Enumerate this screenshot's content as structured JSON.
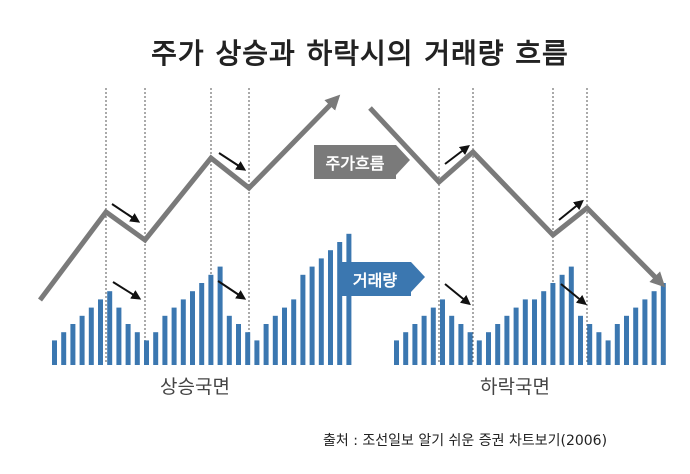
{
  "title": "주가 상승과 하락시의 거래량 흐름",
  "labels": {
    "price_flow": "주가흐름",
    "volume": "거래량",
    "rising_phase": "상승국면",
    "falling_phase": "하락국면"
  },
  "source": "출처 : 조선일보 알기 쉬운 증권 차트보기(2006)",
  "colors": {
    "price_line": "#7a7a7a",
    "volume_bar": "#3b77b0",
    "arrow": "#111111"
  },
  "diagram": {
    "rising": {
      "price_trend": "up",
      "volume_levels": [
        3,
        4,
        5,
        6,
        7,
        8,
        9,
        7,
        5,
        4,
        3,
        4,
        6,
        7,
        8,
        9,
        10,
        11,
        12,
        6,
        5,
        4,
        3,
        5,
        6,
        7,
        8,
        11,
        12,
        13,
        14,
        15,
        16
      ]
    },
    "falling": {
      "price_trend": "down",
      "volume_levels": [
        3,
        4,
        5,
        6,
        7,
        8,
        6,
        5,
        4,
        3,
        4,
        5,
        6,
        7,
        8,
        8,
        9,
        10,
        11,
        12,
        6,
        5,
        4,
        3,
        5,
        6,
        7,
        8,
        9,
        10
      ]
    }
  }
}
